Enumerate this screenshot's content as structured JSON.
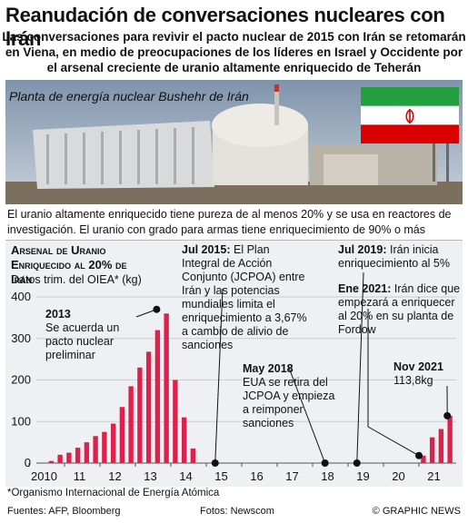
{
  "header": {
    "title": "Reanudación de conversaciones nucleares con Irán",
    "subtitle": "Las conversaciones para revivir el pacto nuclear de 2015 con Irán se retomarán en Viena, en medio de preocupaciones de los líderes en Israel y Occidente por el arsenal creciente de uranio altamente enriquecido de Teherán"
  },
  "photo": {
    "caption": "Planta de energía nuclear Bushehr de Irán",
    "flag_colors": [
      "#239f40",
      "#ffffff",
      "#da0000"
    ]
  },
  "intro_text": "El uranio altamente enriquecido tiene pureza de al menos 20% y se usa en reactores de investigación. El uranio con grado para armas tiene enriquecimiento de 90% o más",
  "annotations": {
    "a2013_year": "2013",
    "a2013_text": "Se acuerda un pacto nuclear preliminar",
    "a2015_head": "Jul 2015:",
    "a2015_text": "El Plan Integral de Acción Conjunto (JCPOA) entre Irán y las potencias mundiales limita el enriquecimiento a 3,67% a cambio de alivio de sanciones",
    "a2018_head": "May 2018",
    "a2018_text": "EUA se retira del JCPOA y empieza a reimponer sanciones",
    "a2019_head": "Jul 2019:",
    "a2019_text": "Irán inicia enriquecimiento al 5%",
    "a2021_head": "Ene 2021:",
    "a2021_text": "Irán dice que empezará a enriquecer al 20% en su planta de Fordow",
    "anov_head": "Nov 2021",
    "anov_text": "113,8kg"
  },
  "chart_data": {
    "type": "bar",
    "title": "Arsenal de Uranio Enriquecido al 20% de Irán",
    "subtitle": "Datos trim. del OIEA* (kg)",
    "x_ticks": [
      "2010",
      "11",
      "12",
      "13",
      "14",
      "15",
      "16",
      "17",
      "18",
      "19",
      "20",
      "21"
    ],
    "ylim": [
      0,
      400
    ],
    "y_ticks": [
      0,
      100,
      200,
      300,
      400
    ],
    "bar_color": "#e0204a",
    "series": [
      {
        "values": [
          {
            "x": 2010.5,
            "y": 5
          },
          {
            "x": 2010.75,
            "y": 20
          },
          {
            "x": 2011.0,
            "y": 25
          },
          {
            "x": 2011.25,
            "y": 37
          },
          {
            "x": 2011.5,
            "y": 50
          },
          {
            "x": 2011.75,
            "y": 65
          },
          {
            "x": 2012.0,
            "y": 75
          },
          {
            "x": 2012.25,
            "y": 95
          },
          {
            "x": 2012.5,
            "y": 135
          },
          {
            "x": 2012.75,
            "y": 185
          },
          {
            "x": 2013.0,
            "y": 230
          },
          {
            "x": 2013.25,
            "y": 268
          },
          {
            "x": 2013.5,
            "y": 320
          },
          {
            "x": 2013.75,
            "y": 360
          },
          {
            "x": 2014.0,
            "y": 200
          },
          {
            "x": 2014.25,
            "y": 110
          },
          {
            "x": 2014.5,
            "y": 35
          },
          {
            "x": 2021.0,
            "y": 18
          },
          {
            "x": 2021.25,
            "y": 62
          },
          {
            "x": 2021.5,
            "y": 82
          },
          {
            "x": 2021.75,
            "y": 113.8
          }
        ]
      }
    ],
    "events": [
      {
        "label": "2013",
        "x": 2013.6,
        "y": 370
      },
      {
        "label": "Jul 2015",
        "x": 2015.25,
        "y": 0
      },
      {
        "label": "May 2018",
        "x": 2018.35,
        "y": 0
      },
      {
        "label": "Jul 2019",
        "x": 2019.25,
        "y": 0
      },
      {
        "label": "Ene 2021",
        "x": 2021.0,
        "y": 18
      },
      {
        "label": "Nov 2021",
        "x": 2021.8,
        "y": 113.8
      }
    ]
  },
  "footer": {
    "footnote": "*Organismo Internacional de Energía Atómica",
    "sources": "Fuentes: AFP, Bloomberg",
    "photo_source": "Fotos: Newscom",
    "credit": "© GRAPHIC NEWS"
  }
}
